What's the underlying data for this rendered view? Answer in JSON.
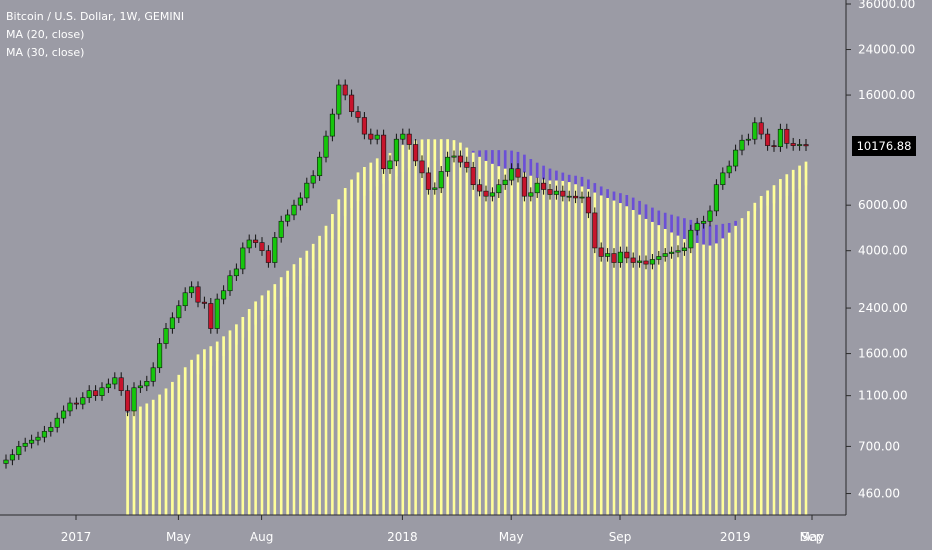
{
  "legend": {
    "symbol": "Bitcoin / U.S. Dollar, 1W, GEMINI",
    "ma20": "MA (20, close)",
    "ma30": "MA (30, close)"
  },
  "last_price_label": "10176.88",
  "colors": {
    "background": "#9b9ba5",
    "up_candle": "#16c60c",
    "down_candle": "#c7142c",
    "ma20": "#ffff9a",
    "ma30": "#6b4fd6",
    "axis_text": "#ffffff"
  },
  "chart_data": {
    "type": "candlestick",
    "title": "Bitcoin / U.S. Dollar, 1W, GEMINI",
    "y_scale": "log",
    "y_range": [
      380,
      36000
    ],
    "y_ticks": [
      "36000.00",
      "24000.00",
      "16000.00",
      "10176.88",
      "6000.00",
      "4000.00",
      "2400.00",
      "1600.00",
      "1100.00",
      "700.00",
      "460.00"
    ],
    "x_ticks": [
      "2017",
      "May",
      "Aug",
      "2018",
      "May",
      "Sep",
      "2019",
      "May",
      "Sep"
    ],
    "weekly_close_approx": [
      620,
      650,
      700,
      720,
      740,
      760,
      800,
      830,
      900,
      960,
      1030,
      1020,
      1080,
      1150,
      1100,
      1180,
      1220,
      1290,
      1150,
      960,
      1180,
      1200,
      1250,
      1410,
      1750,
      2000,
      2200,
      2450,
      2750,
      2900,
      2530,
      2500,
      2000,
      2600,
      2800,
      3200,
      3400,
      4100,
      4400,
      4300,
      4000,
      3600,
      4500,
      5200,
      5500,
      6000,
      6400,
      7300,
      7800,
      9200,
      11100,
      13500,
      17500,
      16000,
      13800,
      13100,
      11300,
      10800,
      11200,
      8300,
      8900,
      10800,
      11300,
      10300,
      8900,
      8000,
      6900,
      7000,
      8100,
      9200,
      9300,
      8800,
      8400,
      7200,
      6800,
      6500,
      6700,
      7200,
      7500,
      8300,
      7700,
      6500,
      6700,
      7300,
      6900,
      6600,
      6800,
      6500,
      6500,
      6400,
      6450,
      5600,
      4100,
      3800,
      3900,
      3600,
      3950,
      3750,
      3600,
      3650,
      3550,
      3700,
      3800,
      3900,
      3950,
      4000,
      4100,
      4800,
      5100,
      5200,
      5700,
      7200,
      8000,
      8500,
      9800,
      10700,
      10800,
      12500,
      11300,
      10200,
      10100,
      11800,
      10400,
      10200,
      10300,
      10176.88
    ],
    "last_price": 10176.88
  }
}
